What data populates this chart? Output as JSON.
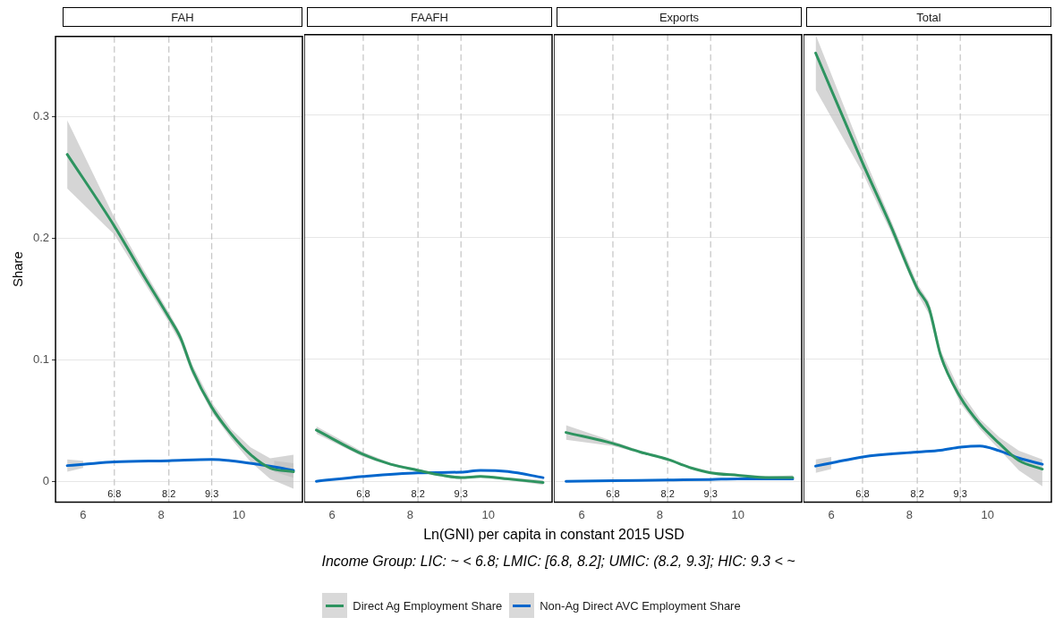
{
  "chart_data": [
    {
      "type": "line",
      "title": "FAH",
      "ylabel": "Share",
      "annotations": [
        "Income Group: LIC: ~ < 6.8; LMIC: [6.8, 8.2]; UMIC: (8.2, 9.3]; HIC: 9.3 < ~"
      ],
      "legend": "bottom",
      "grid": "y",
      "xlim": [
        5.29,
        11.63
      ],
      "ylim": [
        -0.017,
        0.366
      ],
      "xticks": [
        6,
        8,
        10
      ],
      "yticks": [
        0,
        0.1,
        0.2,
        0.3
      ],
      "ref_lines": [
        {
          "axis": "x",
          "value": 6.8,
          "label": "6.8",
          "color": "#c8c8c8",
          "line_style": "dashed"
        },
        {
          "axis": "x",
          "value": 8.2,
          "label": "8.2",
          "color": "#c8c8c8",
          "line_style": "dashed"
        },
        {
          "axis": "x",
          "value": 9.3,
          "label": "9.3",
          "color": "#c8c8c8",
          "line_style": "dashed"
        }
      ],
      "series": [
        {
          "name": "Direct Ag Employment Share",
          "color": "#2e9460",
          "x": [
            5.59,
            6.8,
            7.5,
            8.2,
            8.5,
            8.8,
            9.3,
            9.8,
            10.3,
            10.8,
            11.4
          ],
          "values": [
            0.269,
            0.21,
            0.172,
            0.135,
            0.118,
            0.092,
            0.061,
            0.039,
            0.022,
            0.011,
            0.008
          ],
          "lower": [
            0.241,
            0.203,
            0.167,
            0.131,
            0.114,
            0.088,
            0.057,
            0.035,
            0.016,
            0.002,
            -0.006
          ],
          "upper": [
            0.297,
            0.217,
            0.177,
            0.139,
            0.122,
            0.096,
            0.065,
            0.043,
            0.028,
            0.019,
            0.022
          ]
        },
        {
          "name": "Non-Ag Direct AVC Employment Share",
          "color": "#0066cc",
          "x": [
            5.59,
            6.0,
            6.8,
            8.2,
            9.3,
            9.8,
            10.5,
            10.9,
            11.4
          ],
          "values": [
            0.013,
            0.014,
            0.016,
            0.017,
            0.018,
            0.017,
            0.014,
            0.012,
            0.009
          ],
          "lower": [
            0.008,
            0.011,
            null,
            null,
            null,
            null,
            null,
            0.008,
            0.003
          ],
          "upper": [
            0.018,
            0.017,
            null,
            null,
            null,
            null,
            null,
            0.017,
            0.015
          ]
        }
      ]
    },
    {
      "type": "line",
      "title": "FAAFH",
      "xlabel": "Ln(GNI) per capita in constant 2015 USD",
      "tick_labels": "x",
      "grid": "y",
      "xlim": [
        5.29,
        11.63
      ],
      "ylim": [
        -0.017,
        0.366
      ],
      "xticks": [
        6,
        8,
        10
      ],
      "yticks": [
        0,
        0.1,
        0.2,
        0.3
      ],
      "ref_lines": [
        {
          "axis": "x",
          "value": 6.8,
          "label": "6.8",
          "color": "#c8c8c8",
          "line_style": "dashed"
        },
        {
          "axis": "x",
          "value": 8.2,
          "label": "8.2",
          "color": "#c8c8c8",
          "line_style": "dashed"
        },
        {
          "axis": "x",
          "value": 9.3,
          "label": "9.3",
          "color": "#c8c8c8",
          "line_style": "dashed"
        }
      ],
      "series": [
        {
          "color": "#2e9460",
          "x": [
            5.6,
            6.8,
            7.5,
            8.2,
            8.8,
            9.3,
            9.8,
            10.5,
            11.4
          ],
          "values": [
            0.042,
            0.022,
            0.014,
            0.009,
            0.005,
            0.003,
            0.004,
            0.002,
            -0.001
          ],
          "lower": [
            0.039,
            0.02,
            0.013,
            0.008,
            0.004,
            0.002,
            0.003,
            0.001,
            -0.003
          ],
          "upper": [
            0.045,
            0.024,
            0.015,
            0.01,
            0.006,
            0.004,
            0.005,
            0.003,
            0.001
          ]
        },
        {
          "color": "#0066cc",
          "x": [
            5.6,
            6.8,
            8.2,
            9.3,
            9.8,
            10.5,
            11.4
          ],
          "values": [
            0.0,
            0.004,
            0.007,
            0.0075,
            0.009,
            0.008,
            0.003
          ]
        }
      ]
    },
    {
      "type": "line",
      "title": "Exports",
      "tick_labels": "x",
      "grid": "y",
      "xlim": [
        5.29,
        11.63
      ],
      "ylim": [
        -0.017,
        0.366
      ],
      "xticks": [
        6,
        8,
        10
      ],
      "yticks": [
        0,
        0.1,
        0.2,
        0.3
      ],
      "ref_lines": [
        {
          "axis": "x",
          "value": 6.8,
          "label": "6.8",
          "color": "#c8c8c8",
          "line_style": "dashed"
        },
        {
          "axis": "x",
          "value": 8.2,
          "label": "8.2",
          "color": "#c8c8c8",
          "line_style": "dashed"
        },
        {
          "axis": "x",
          "value": 9.3,
          "label": "9.3",
          "color": "#c8c8c8",
          "line_style": "dashed"
        }
      ],
      "series": [
        {
          "color": "#2e9460",
          "x": [
            5.6,
            6.8,
            7.5,
            8.2,
            8.8,
            9.3,
            10,
            10.8,
            11.4
          ],
          "values": [
            0.04,
            0.031,
            0.024,
            0.018,
            0.011,
            0.007,
            0.005,
            0.003,
            0.003
          ],
          "lower": [
            0.034,
            0.029,
            0.023,
            0.017,
            0.01,
            0.006,
            0.004,
            0.002,
            0.001
          ],
          "upper": [
            0.046,
            0.033,
            0.025,
            0.019,
            0.012,
            0.008,
            0.006,
            0.004,
            0.005
          ]
        },
        {
          "color": "#0066cc",
          "x": [
            5.6,
            6.8,
            8.2,
            9.3,
            10,
            11.4
          ],
          "values": [
            0.0,
            0.0005,
            0.001,
            0.0015,
            0.002,
            0.002
          ]
        }
      ]
    },
    {
      "type": "line",
      "title": "Total",
      "tick_labels": "x",
      "grid": "y",
      "xlim": [
        5.29,
        11.63
      ],
      "ylim": [
        -0.017,
        0.366
      ],
      "xticks": [
        6,
        8,
        10
      ],
      "yticks": [
        0,
        0.1,
        0.2,
        0.3
      ],
      "ref_lines": [
        {
          "axis": "x",
          "value": 6.8,
          "label": "6.8",
          "color": "#c8c8c8",
          "line_style": "dashed"
        },
        {
          "axis": "x",
          "value": 8.2,
          "label": "8.2",
          "color": "#c8c8c8",
          "line_style": "dashed"
        },
        {
          "axis": "x",
          "value": 9.3,
          "label": "9.3",
          "color": "#c8c8c8",
          "line_style": "dashed"
        }
      ],
      "series": [
        {
          "color": "#2e9460",
          "x": [
            5.6,
            6.8,
            7.5,
            8.2,
            8.5,
            8.8,
            9.3,
            9.8,
            10.3,
            10.8,
            11.4
          ],
          "values": [
            0.351,
            0.261,
            0.211,
            0.158,
            0.142,
            0.103,
            0.069,
            0.047,
            0.031,
            0.017,
            0.01
          ],
          "lower": [
            0.321,
            0.253,
            0.206,
            0.154,
            0.137,
            0.099,
            0.064,
            0.043,
            0.026,
            0.009,
            -0.004
          ],
          "upper": [
            0.366,
            0.269,
            0.216,
            0.162,
            0.147,
            0.107,
            0.074,
            0.051,
            0.036,
            0.025,
            0.018
          ]
        },
        {
          "color": "#0066cc",
          "x": [
            5.6,
            6.0,
            6.8,
            8.2,
            8.8,
            9.3,
            9.8,
            10.3,
            10.8,
            11.4
          ],
          "values": [
            0.0125,
            0.015,
            0.02,
            0.024,
            0.0255,
            0.028,
            0.029,
            0.025,
            0.019,
            0.014
          ],
          "lower": [
            0.007,
            0.01,
            null,
            null,
            null,
            null,
            null,
            null,
            null,
            null
          ],
          "upper": [
            0.018,
            0.02,
            null,
            null,
            null,
            null,
            null,
            null,
            null,
            null
          ]
        }
      ]
    }
  ]
}
